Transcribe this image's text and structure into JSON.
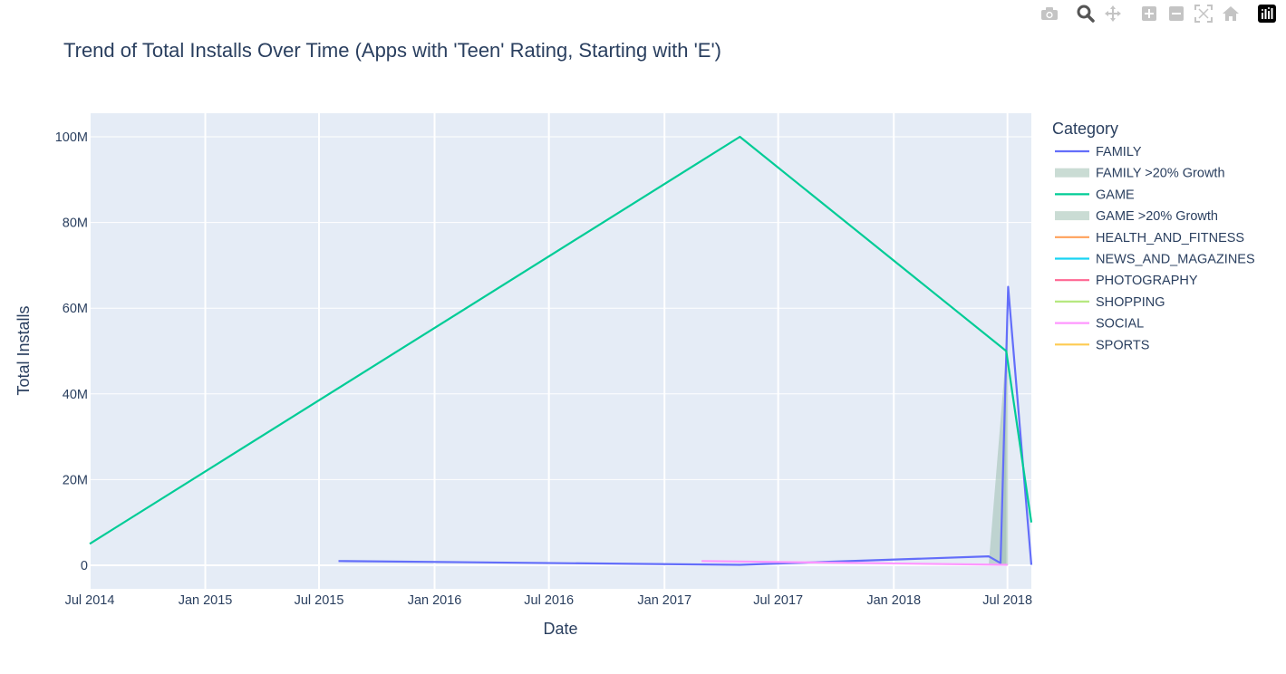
{
  "modebar": {
    "buttons": [
      "camera-icon",
      "zoom-icon",
      "pan-icon",
      "zoom-in-icon",
      "zoom-out-icon",
      "autoscale-icon",
      "reset-axes-icon",
      "plotly-logo-icon"
    ]
  },
  "chart_data": {
    "type": "line",
    "title": "Trend of Total Installs Over Time (Apps with 'Teen' Rating, Starting with 'E')",
    "xlabel": "Date",
    "ylabel": "Total Installs",
    "xlim": [
      "2014-07-01",
      "2018-08-08"
    ],
    "ylim": [
      -5500000,
      105500000
    ],
    "x_ticks": [
      {
        "date": "2014-07-01",
        "label": "Jul 2014"
      },
      {
        "date": "2015-01-01",
        "label": "Jan 2015"
      },
      {
        "date": "2015-07-01",
        "label": "Jul 2015"
      },
      {
        "date": "2016-01-01",
        "label": "Jan 2016"
      },
      {
        "date": "2016-07-01",
        "label": "Jul 2016"
      },
      {
        "date": "2017-01-01",
        "label": "Jan 2017"
      },
      {
        "date": "2017-07-01",
        "label": "Jul 2017"
      },
      {
        "date": "2018-01-01",
        "label": "Jan 2018"
      },
      {
        "date": "2018-07-01",
        "label": "Jul 2018"
      }
    ],
    "y_ticks": [
      {
        "value": 0,
        "label": "0"
      },
      {
        "value": 20000000,
        "label": "20M"
      },
      {
        "value": 40000000,
        "label": "40M"
      },
      {
        "value": 60000000,
        "label": "60M"
      },
      {
        "value": 80000000,
        "label": "80M"
      },
      {
        "value": 100000000,
        "label": "100M"
      }
    ],
    "grid": true,
    "legend": {
      "title": "Category",
      "placement": "right"
    },
    "series": [
      {
        "name": "FAMILY",
        "kind": "line",
        "color": "#636efa",
        "x": [
          "2015-08-01",
          "2017-05-01",
          "2018-06-01",
          "2018-06-20",
          "2018-07-02",
          "2018-08-08"
        ],
        "y": [
          1000000,
          100000,
          2100000,
          500000,
          65000000,
          100000
        ]
      },
      {
        "name": "FAMILY >20% Growth",
        "kind": "area",
        "color": "#9fc0b0",
        "x": [
          "2018-06-01",
          "2018-06-20",
          "2018-07-02",
          "2018-07-02"
        ],
        "y": [
          0,
          0,
          65000000,
          0
        ]
      },
      {
        "name": "GAME",
        "kind": "line",
        "color": "#00cc96",
        "x": [
          "2014-07-01",
          "2017-05-01",
          "2018-06-29",
          "2018-08-08"
        ],
        "y": [
          5000000,
          100000000,
          50000000,
          10000000
        ]
      },
      {
        "name": "GAME >20% Growth",
        "kind": "area",
        "color": "#9fc0b0",
        "x": [
          "2018-06-01",
          "2018-06-29",
          "2018-06-29"
        ],
        "y": [
          0,
          50000000,
          0
        ]
      },
      {
        "name": "HEALTH_AND_FITNESS",
        "kind": "line",
        "color": "#ffa15a",
        "x": [],
        "y": []
      },
      {
        "name": "NEWS_AND_MAGAZINES",
        "kind": "line",
        "color": "#19d3f3",
        "x": [],
        "y": []
      },
      {
        "name": "PHOTOGRAPHY",
        "kind": "line",
        "color": "#ff6692",
        "x": [],
        "y": []
      },
      {
        "name": "SHOPPING",
        "kind": "line",
        "color": "#b6e880",
        "x": [],
        "y": []
      },
      {
        "name": "SOCIAL",
        "kind": "line",
        "color": "#ff97ff",
        "x": [
          "2017-03-01",
          "2018-07-01"
        ],
        "y": [
          1000000,
          100000
        ]
      },
      {
        "name": "SPORTS",
        "kind": "line",
        "color": "#fecb52",
        "x": [],
        "y": []
      }
    ]
  }
}
